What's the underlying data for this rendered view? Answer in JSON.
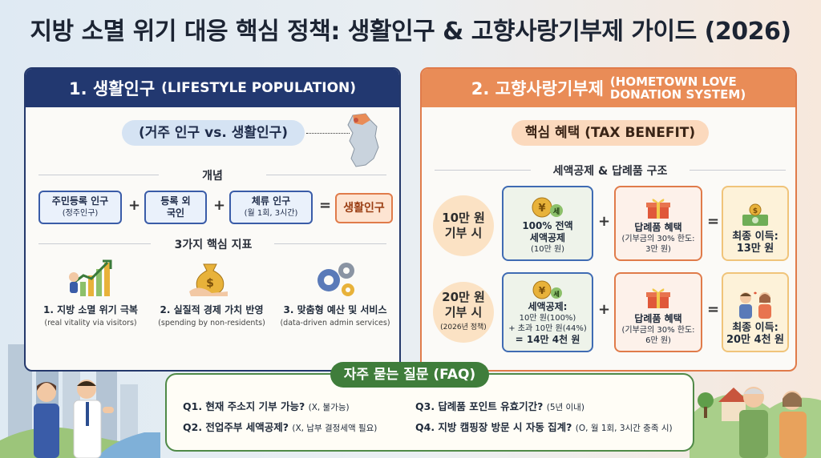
{
  "title": "지방 소멸 위기 대응 핵심 정책: 생활인구 & 고향사랑기부제 가이드 (2026)",
  "left": {
    "header": "1. 생활인구",
    "header_sub": "(LIFESTYLE POPULATION)",
    "pill": "(거주 인구 vs. 생활인구)",
    "concept_label": "개념",
    "formula": [
      {
        "main": "주민등록 인구",
        "sub": "(정주인구)"
      },
      {
        "main": "등록 외국인",
        "sub": ""
      },
      {
        "main": "체류 인구",
        "sub": "(월 1회, 3시간)"
      }
    ],
    "result": "생활인구",
    "metrics_label": "3가지 핵심 지표",
    "metrics": [
      {
        "label": "1. 지방 소멸 위기 극복",
        "sub": "(real vitality via visitors)",
        "icon": "growth-chart-icon"
      },
      {
        "label": "2. 실질적 경제 가치 반영",
        "sub": "(spending by non-residents)",
        "icon": "money-bag-icon"
      },
      {
        "label": "3. 맞춤형 예산 및 서비스",
        "sub": "(data-driven admin services)",
        "icon": "gears-icon"
      }
    ]
  },
  "right": {
    "header": "2. 고향사랑기부제",
    "header_sub_1": "(HOMETOWN LOVE",
    "header_sub_2": "DONATION SYSTEM)",
    "pill": "핵심 혜택 (TAX BENEFIT)",
    "structure_label": "세액공제 & 답례품 구조",
    "rows": [
      {
        "donation": "10만 원 기부 시",
        "donation_l1": "10만 원",
        "donation_l2": "기부 시",
        "donation_note": "",
        "tax_l1": "100% 전액",
        "tax_l2": "세액공제",
        "tax_l3": "(10만 원)",
        "gift_l1": "답례품 혜택",
        "gift_l2": "(기부금의 30% 한도:",
        "gift_l3": "3만 원)",
        "final_l1": "최종 이득:",
        "final_l2": "13만 원"
      },
      {
        "donation_l1": "20만 원",
        "donation_l2": "기부 시",
        "donation_note": "(2026년 정책)",
        "tax_l1": "세액공제:",
        "tax_l2": "10만 원(100%)",
        "tax_l3": "+ 초과 10만 원(44%)",
        "tax_l4": "= 14만 4천 원",
        "gift_l1": "답례품 혜택",
        "gift_l2": "(기부금의 30% 한도:",
        "gift_l3": "6만 원)",
        "final_l1": "최종 이득:",
        "final_l2": "20만 4천 원"
      }
    ],
    "tax_badge": "세"
  },
  "faq": {
    "title": "자주 묻는 질문 (FAQ)",
    "items": [
      {
        "q": "Q1. 현재 주소지 기부 가능?",
        "a": "(X, 불가능)"
      },
      {
        "q": "Q2. 전업주부 세액공제?",
        "a": "(X, 납부 결정세액 필요)"
      },
      {
        "q": "Q3. 답례품 포인트 유효기간?",
        "a": "(5년 이내)"
      },
      {
        "q": "Q4. 지방 캠핑장 방문 시 자동 집계?",
        "a": "(O, 월 1회, 3시간 충족 시)"
      }
    ]
  },
  "colors": {
    "navy": "#223870",
    "orange": "#e98c57",
    "green": "#3f7d3b"
  }
}
